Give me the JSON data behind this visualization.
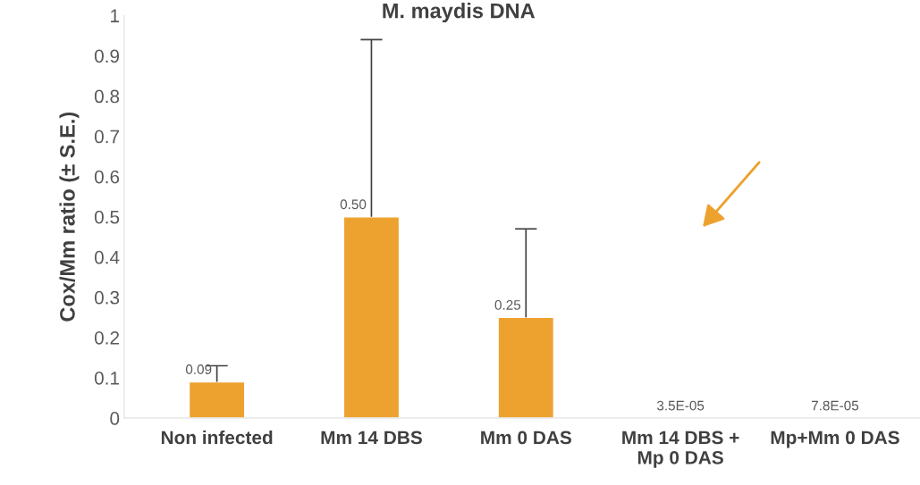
{
  "chart_data": {
    "type": "bar",
    "title": "M. maydis DNA",
    "ylabel": "Cox/Mm ratio (± S.E.)",
    "categories": [
      "Non infected",
      "Mm 14 DBS",
      "Mm 0 DAS",
      "Mm 14 DBS +\nMp 0 DAS",
      "Mp+Mm 0 DAS"
    ],
    "values": [
      0.09,
      0.5,
      0.25,
      3.5e-05,
      7.8e-05
    ],
    "value_labels": [
      "0.09",
      "0.50",
      "0.25",
      "3.5E-05",
      "7.8E-05"
    ],
    "errors": [
      [
        0.09,
        0.13
      ],
      [
        0.5,
        0.94
      ],
      [
        0.25,
        0.47
      ],
      null,
      null
    ],
    "color": "#eda22f",
    "ylim": [
      0,
      1
    ],
    "yticks": [
      0,
      0.1,
      0.2,
      0.3,
      0.4,
      0.5,
      0.6,
      0.7,
      0.8,
      0.9,
      1
    ],
    "grid": false,
    "legend": false
  }
}
